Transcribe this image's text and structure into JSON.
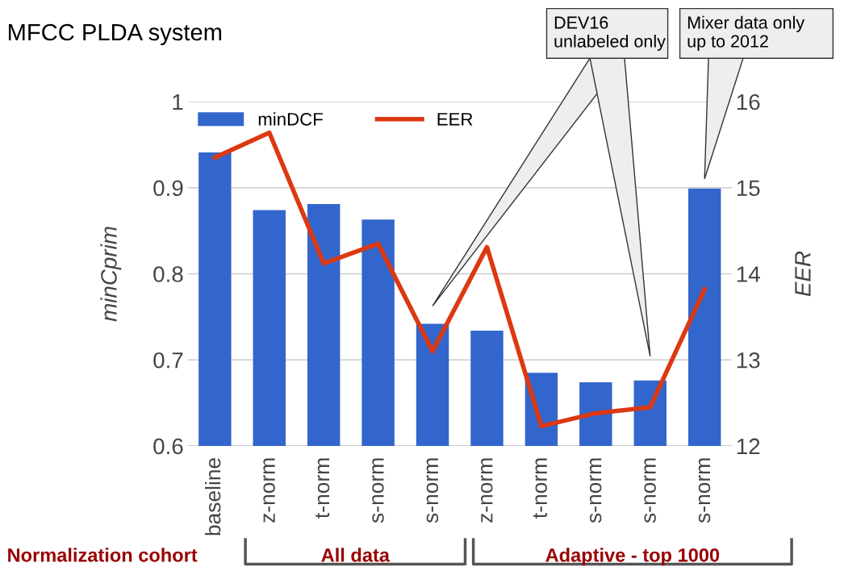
{
  "chart_data": {
    "type": "bar",
    "title": "MFCC PLDA system",
    "categories": [
      "baseline",
      "z-norm",
      "t-norm",
      "s-norm",
      "s-norm",
      "z-norm",
      "t-norm",
      "s-norm",
      "s-norm",
      "s-norm"
    ],
    "series": [
      {
        "name": "minDCF",
        "color": "#3366cc",
        "values": [
          0.941,
          0.874,
          0.881,
          0.863,
          0.742,
          0.734,
          0.685,
          0.674,
          0.676,
          0.899
        ]
      },
      {
        "name": "EER",
        "type": "line",
        "axis": "y2",
        "color": "#dc3912",
        "values": [
          15.35,
          15.64,
          14.12,
          14.35,
          13.1,
          14.31,
          12.23,
          12.38,
          12.45,
          13.82
        ]
      }
    ],
    "ylabel": "minCprim",
    "y2label": "EER",
    "ylim": [
      0.6,
      1.0
    ],
    "yticks": [
      {
        "value": 0.6,
        "label": "0.6"
      },
      {
        "value": 0.7,
        "label": "0.7"
      },
      {
        "value": 0.8,
        "label": "0.8"
      },
      {
        "value": 0.9,
        "label": "0.9"
      },
      {
        "value": 1.0,
        "label": "1"
      }
    ],
    "y2lim": [
      12,
      16
    ],
    "y2ticks": [
      12,
      13,
      14,
      15,
      16
    ],
    "grid": "y",
    "legend": "top left",
    "marker": "none",
    "line_style": "solid",
    "annotations": [
      "DEV16\nunlabeled only",
      "Mixer data only\nup to 2012",
      "Normalization cohort",
      "All data",
      "Adaptive - top 1000"
    ]
  }
}
